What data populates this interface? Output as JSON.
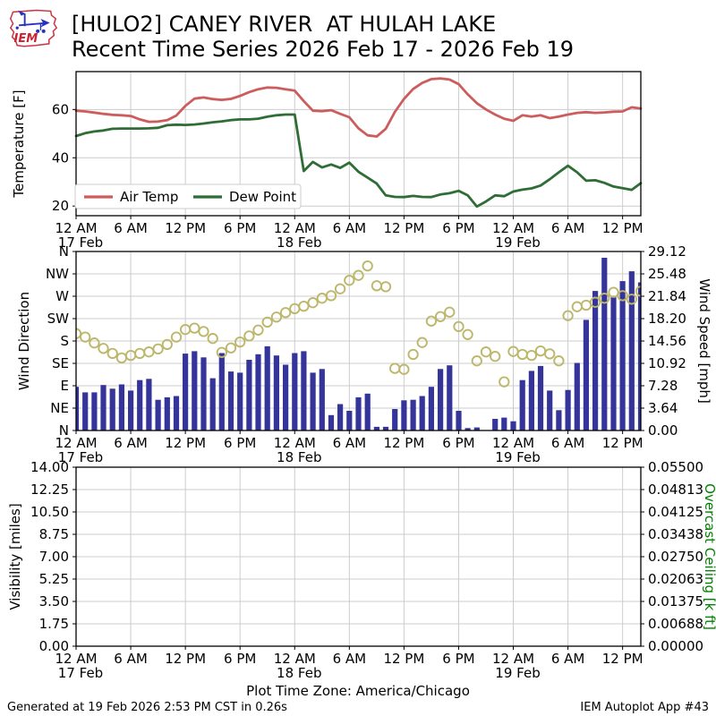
{
  "header": {
    "title_line1": "[HULO2] CANEY RIVER  AT HULAH LAKE",
    "title_line2": "Recent Time Series 2026 Feb 17 - 2026 Feb 19",
    "logo_text": "IEM"
  },
  "footer": {
    "timezone_note": "Plot Time Zone: America/Chicago",
    "generated": "Generated at 19 Feb 2026 2:53 PM CST in 0.26s",
    "app_label": "IEM Autoplot App #43"
  },
  "style": {
    "grid_color": "#cccccc",
    "frame_color": "#000000",
    "air_temp_color": "#cd5c5c",
    "dew_point_color": "#2e6d35",
    "wind_bar_color": "#34349b",
    "wind_dir_color": "#bdb76b",
    "ceiling_label_color": "#008000"
  },
  "time_axis": {
    "hours_span": 62,
    "ticks": [
      {
        "hour": 0,
        "label": "12 AM",
        "date": "17 Feb"
      },
      {
        "hour": 6,
        "label": "6 AM"
      },
      {
        "hour": 12,
        "label": "12 PM"
      },
      {
        "hour": 18,
        "label": "6 PM"
      },
      {
        "hour": 24,
        "label": "12 AM",
        "date": "18 Feb"
      },
      {
        "hour": 30,
        "label": "6 AM"
      },
      {
        "hour": 36,
        "label": "12 PM"
      },
      {
        "hour": 42,
        "label": "6 PM"
      },
      {
        "hour": 48,
        "label": "12 AM",
        "date": "19 Feb"
      },
      {
        "hour": 54,
        "label": "6 AM"
      },
      {
        "hour": 60,
        "label": "12 PM"
      }
    ]
  },
  "chart_data": [
    {
      "type": "line",
      "id": "temperature",
      "ylabel": "Temperature [F]",
      "ylim": [
        16,
        75.7
      ],
      "yticks": [
        20,
        40,
        60
      ],
      "grid": true,
      "legend_position": "lower left",
      "x_unit": "hours from 12 AM 17 Feb, hourly samples",
      "series": [
        {
          "name": "Air Temp",
          "color": "#cd5c5c",
          "values": [
            59.5,
            59.2,
            58.7,
            58.2,
            57.8,
            57.6,
            57.3,
            55.9,
            54.9,
            55.0,
            55.6,
            57.5,
            61.5,
            64.5,
            65.0,
            64.3,
            64.0,
            64.4,
            65.6,
            67.2,
            68.4,
            69.1,
            69.0,
            68.4,
            67.8,
            63.5,
            59.5,
            59.3,
            59.7,
            58.2,
            56.8,
            52.2,
            49.3,
            48.8,
            52.0,
            59.0,
            64.4,
            68.5,
            71.0,
            72.6,
            72.9,
            72.4,
            70.5,
            66.3,
            62.6,
            60.0,
            57.9,
            56.2,
            55.3,
            57.6,
            57.1,
            57.6,
            56.4,
            57.1,
            57.9,
            58.6,
            58.9,
            58.6,
            58.8,
            59.1,
            59.2,
            60.9,
            60.4
          ]
        },
        {
          "name": "Dew Point",
          "color": "#2e6d35",
          "values": [
            49.0,
            50.2,
            50.9,
            51.3,
            52.0,
            52.1,
            52.1,
            52.1,
            52.2,
            52.4,
            53.5,
            53.7,
            53.6,
            53.8,
            54.2,
            54.7,
            55.1,
            55.6,
            55.9,
            55.9,
            56.2,
            57.0,
            57.6,
            57.9,
            57.9,
            34.5,
            38.3,
            36.0,
            37.2,
            35.8,
            38.0,
            34.2,
            31.8,
            29.3,
            24.4,
            23.8,
            23.7,
            24.2,
            23.8,
            23.7,
            24.8,
            25.3,
            26.3,
            24.4,
            19.8,
            21.9,
            24.4,
            24.1,
            26.0,
            26.8,
            27.3,
            28.5,
            31.1,
            34.0,
            36.7,
            34.0,
            30.5,
            30.7,
            29.6,
            28.1,
            27.4,
            26.7,
            29.5
          ]
        }
      ]
    },
    {
      "type": "mixed",
      "id": "wind",
      "ylabel_left": "Wind Direction",
      "ylabel_right": "Wind Speed [mph]",
      "ylim_left": [
        0,
        360
      ],
      "ylim_right": [
        0,
        29.12
      ],
      "yticks_left": [
        "N",
        "NE",
        "E",
        "SE",
        "S",
        "SW",
        "W",
        "NW",
        "N"
      ],
      "yticks_right": [
        "0.00",
        "3.64",
        "7.28",
        "10.92",
        "14.56",
        "18.20",
        "21.84",
        "25.48",
        "29.12"
      ],
      "grid": true,
      "x_unit": "hours from 12 AM 17 Feb, hourly samples",
      "series": [
        {
          "name": "Wind Direction",
          "type": "scatter",
          "unit": "degrees",
          "color": "#bdb76b",
          "values": [
            195,
            188,
            176,
            165,
            155,
            146,
            151,
            155,
            158,
            164,
            173,
            188,
            203,
            206,
            199,
            185,
            157,
            166,
            178,
            190,
            202,
            218,
            228,
            237,
            245,
            250,
            257,
            266,
            271,
            285,
            302,
            312,
            331,
            291,
            289,
            125,
            123,
            153,
            177,
            220,
            229,
            238,
            209,
            193,
            140,
            158,
            149,
            98,
            159,
            153,
            151,
            160,
            154,
            140,
            231,
            249,
            252,
            258,
            266,
            278,
            271,
            264,
            280
          ]
        },
        {
          "name": "Wind Speed",
          "type": "bar",
          "unit": "mph",
          "color": "#34349b",
          "values": [
            7.1,
            6.2,
            6.2,
            7.4,
            6.8,
            7.5,
            6.5,
            8.2,
            8.4,
            5.0,
            5.4,
            5.6,
            12.5,
            12.9,
            11.9,
            8.5,
            12.6,
            9.6,
            9.4,
            11.5,
            12.4,
            13.7,
            12.2,
            10.7,
            12.6,
            12.9,
            9.4,
            10.0,
            2.5,
            4.3,
            3.2,
            5.4,
            6.0,
            0.6,
            0.6,
            3.5,
            4.9,
            5.0,
            5.6,
            7.1,
            10.0,
            10.6,
            3.2,
            0.4,
            0.5,
            0.0,
            1.9,
            2.1,
            1.5,
            8.2,
            9.7,
            10.5,
            6.5,
            3.3,
            6.6,
            11.0,
            18.0,
            22.7,
            28.1,
            21.9,
            24.3,
            25.9,
            24.1
          ]
        }
      ]
    },
    {
      "type": "line",
      "id": "visibility",
      "ylabel_left": "Visibility [miles]",
      "ylabel_right": "Overcast Ceiling [k ft]",
      "ylim_left": [
        0,
        14
      ],
      "ylim_right": [
        0,
        0.055
      ],
      "yticks_left": [
        "14.00",
        "12.25",
        "10.50",
        "8.75",
        "7.00",
        "5.25",
        "3.50",
        "1.75",
        "0.00"
      ],
      "yticks_right": [
        "0.05500",
        "0.04813",
        "0.04125",
        "0.03438",
        "0.02750",
        "0.02063",
        "0.01375",
        "0.00688",
        "0.00000"
      ],
      "grid": true,
      "series": [],
      "note": "panel contains no plotted data"
    }
  ]
}
